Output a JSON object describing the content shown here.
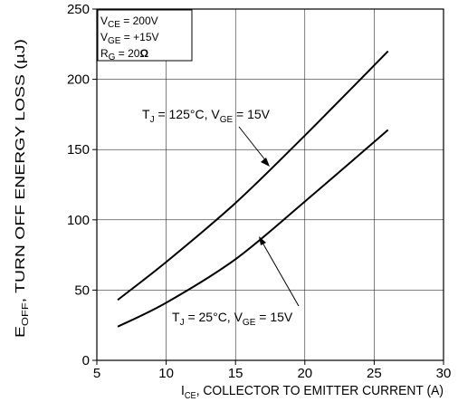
{
  "chart_data": {
    "type": "line",
    "xlim": [
      5,
      30
    ],
    "ylim": [
      0,
      250
    ],
    "x_ticks": [
      "5",
      "10",
      "15",
      "20",
      "25",
      "30"
    ],
    "y_ticks": [
      "0",
      "50",
      "100",
      "150",
      "200",
      "250"
    ],
    "grid": true,
    "xlabel": {
      "main": "I",
      "sub": "CE",
      "rest": ", COLLECTOR TO EMITTER CURRENT (A)"
    },
    "ylabel": {
      "main": "E",
      "sub": "OFF",
      "rest": ", TURN OFF ENERGY LOSS (µJ)"
    },
    "conditions": [
      {
        "main": "V",
        "sub": "CE",
        "rest": " =  200V"
      },
      {
        "main": "V",
        "sub": "GE",
        "rest": " =  +15V"
      },
      {
        "main": "R",
        "sub": "G",
        "rest": " = 20",
        "bold": "Ω"
      }
    ],
    "series": [
      {
        "x": [
          6.5,
          10,
          15,
          20,
          26
        ],
        "y": [
          43,
          70,
          112,
          160,
          220
        ],
        "label": {
          "t": "T",
          "tsub": "J",
          "mid": " = 125°C, V",
          "vsub": "GE",
          "end": " = 15V"
        }
      },
      {
        "x": [
          6.5,
          10,
          15,
          20,
          26
        ],
        "y": [
          24,
          41,
          72,
          113,
          164
        ],
        "label": {
          "t": "T",
          "tsub": "J",
          "mid": " = 25°C, V",
          "vsub": "GE",
          "end": " = 15V"
        }
      }
    ]
  }
}
